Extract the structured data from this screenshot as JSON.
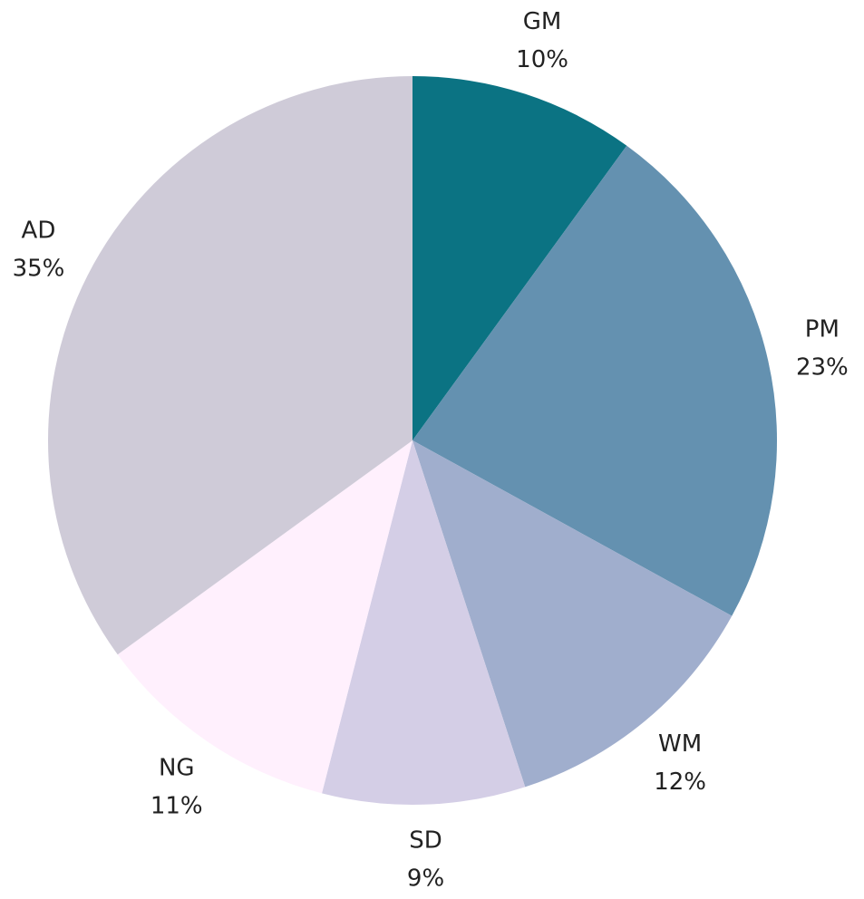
{
  "chart_data": {
    "type": "pie",
    "categories": [
      "GM",
      "PM",
      "WM",
      "SD",
      "NG",
      "AD"
    ],
    "values": [
      10,
      23,
      12,
      9,
      11,
      35
    ],
    "value_labels": [
      "10%",
      "23%",
      "12%",
      "9%",
      "11%",
      "35%"
    ],
    "colors": [
      "#0b7383",
      "#6491b0",
      "#a0aecd",
      "#d4cee6",
      "#fff0fd",
      "#cfcbd8"
    ]
  }
}
